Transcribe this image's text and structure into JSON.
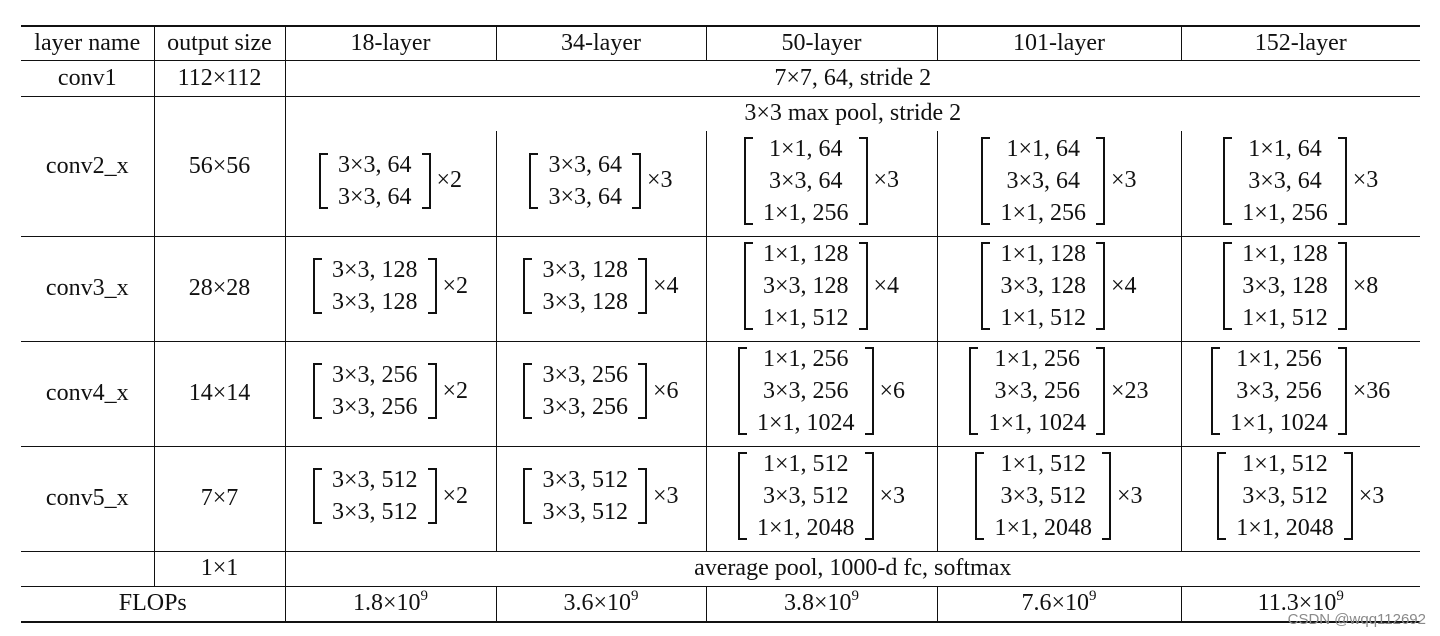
{
  "table": {
    "headers": [
      "layer name",
      "output size",
      "18-layer",
      "34-layer",
      "50-layer",
      "101-layer",
      "152-layer"
    ],
    "conv1": {
      "name": "conv1",
      "output": "112×112",
      "spec": "7×7, 64, stride 2"
    },
    "pool": {
      "spec": "3×3 max pool, stride 2"
    },
    "stages": [
      {
        "name": "conv2_x",
        "output": "56×56",
        "blocks": [
          {
            "lines": [
              "3×3, 64",
              "3×3, 64"
            ],
            "mult": "×2"
          },
          {
            "lines": [
              "3×3, 64",
              "3×3, 64"
            ],
            "mult": "×3"
          },
          {
            "lines": [
              "1×1, 64",
              "3×3, 64",
              "1×1, 256"
            ],
            "mult": "×3"
          },
          {
            "lines": [
              "1×1, 64",
              "3×3, 64",
              "1×1, 256"
            ],
            "mult": "×3"
          },
          {
            "lines": [
              "1×1, 64",
              "3×3, 64",
              "1×1, 256"
            ],
            "mult": "×3"
          }
        ]
      },
      {
        "name": "conv3_x",
        "output": "28×28",
        "blocks": [
          {
            "lines": [
              "3×3, 128",
              "3×3, 128"
            ],
            "mult": "×2"
          },
          {
            "lines": [
              "3×3, 128",
              "3×3, 128"
            ],
            "mult": "×4"
          },
          {
            "lines": [
              "1×1, 128",
              "3×3, 128",
              "1×1, 512"
            ],
            "mult": "×4"
          },
          {
            "lines": [
              "1×1, 128",
              "3×3, 128",
              "1×1, 512"
            ],
            "mult": "×4"
          },
          {
            "lines": [
              "1×1, 128",
              "3×3, 128",
              "1×1, 512"
            ],
            "mult": "×8"
          }
        ]
      },
      {
        "name": "conv4_x",
        "output": "14×14",
        "blocks": [
          {
            "lines": [
              "3×3, 256",
              "3×3, 256"
            ],
            "mult": "×2"
          },
          {
            "lines": [
              "3×3, 256",
              "3×3, 256"
            ],
            "mult": "×6"
          },
          {
            "lines": [
              "1×1, 256",
              "3×3, 256",
              "1×1, 1024"
            ],
            "mult": "×6"
          },
          {
            "lines": [
              "1×1, 256",
              "3×3, 256",
              "1×1, 1024"
            ],
            "mult": "×23"
          },
          {
            "lines": [
              "1×1, 256",
              "3×3, 256",
              "1×1, 1024"
            ],
            "mult": "×36"
          }
        ]
      },
      {
        "name": "conv5_x",
        "output": "7×7",
        "blocks": [
          {
            "lines": [
              "3×3, 512",
              "3×3, 512"
            ],
            "mult": "×2"
          },
          {
            "lines": [
              "3×3, 512",
              "3×3, 512"
            ],
            "mult": "×3"
          },
          {
            "lines": [
              "1×1, 512",
              "3×3, 512",
              "1×1, 2048"
            ],
            "mult": "×3"
          },
          {
            "lines": [
              "1×1, 512",
              "3×3, 512",
              "1×1, 2048"
            ],
            "mult": "×3"
          },
          {
            "lines": [
              "1×1, 512",
              "3×3, 512",
              "1×1, 2048"
            ],
            "mult": "×3"
          }
        ]
      }
    ],
    "final": {
      "output": "1×1",
      "spec": "average pool, 1000-d fc, softmax"
    },
    "flops": {
      "label": "FLOPs",
      "values": [
        {
          "mant": "1.8×10",
          "exp": "9"
        },
        {
          "mant": "3.6×10",
          "exp": "9"
        },
        {
          "mant": "3.8×10",
          "exp": "9"
        },
        {
          "mant": "7.6×10",
          "exp": "9"
        },
        {
          "mant": "11.3×10",
          "exp": "9"
        }
      ]
    }
  },
  "watermark": "CSDN @wqq112692"
}
